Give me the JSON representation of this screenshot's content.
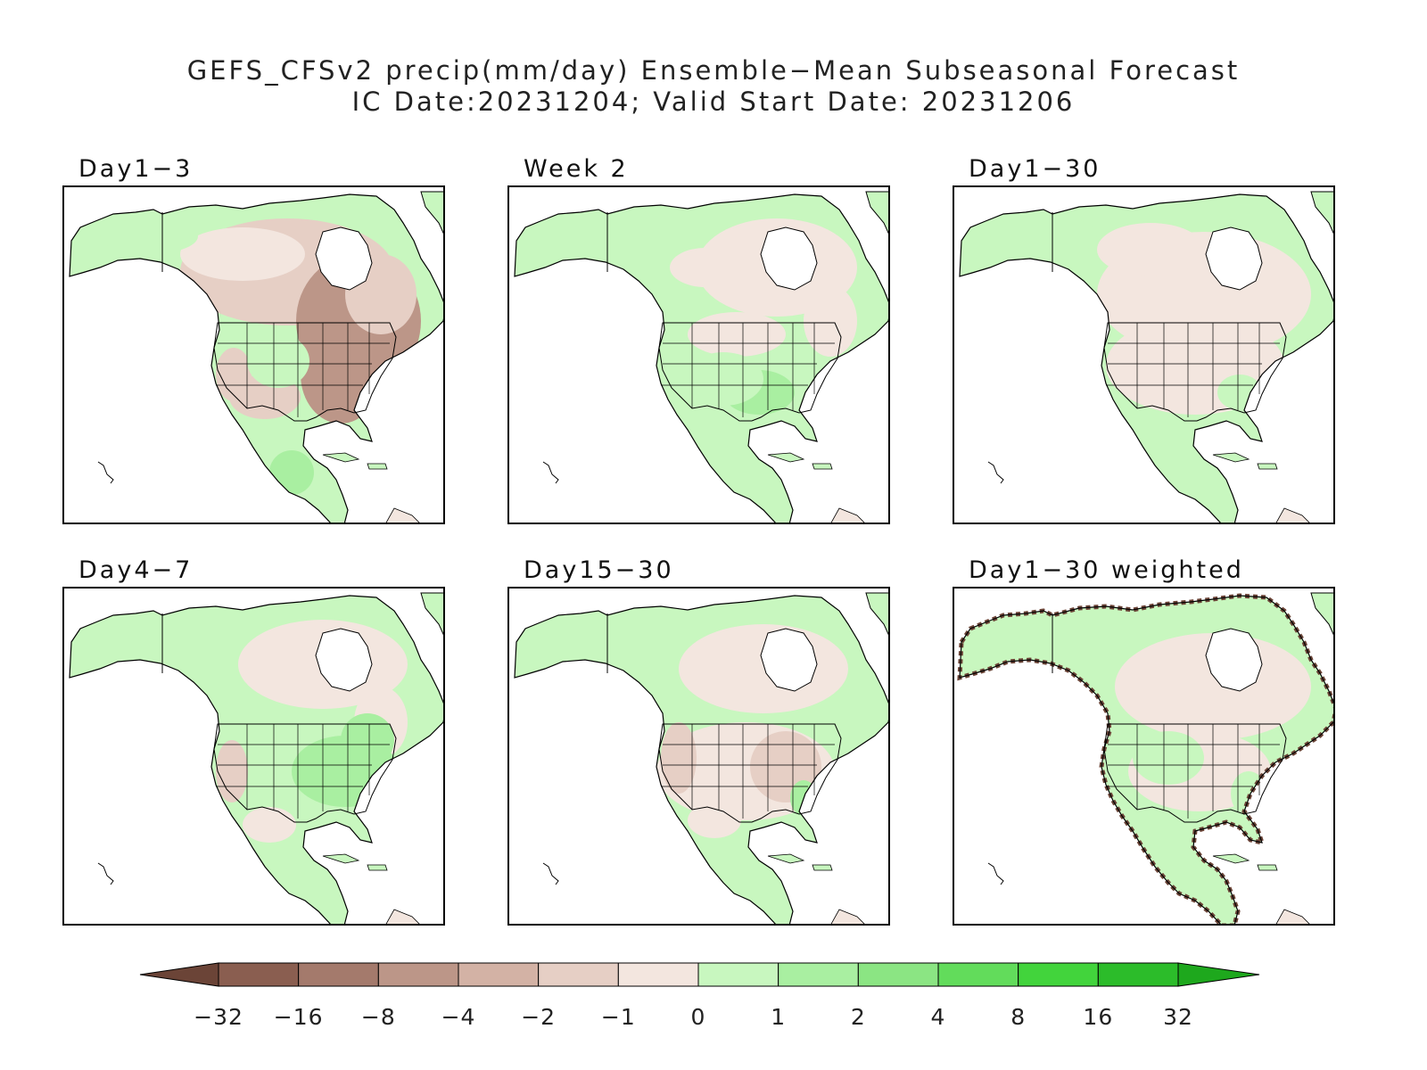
{
  "title": {
    "line1": "GEFS_CFSv2 precip(mm/day) Ensemble−Mean Subseasonal Forecast",
    "line2": "IC Date:20231204; Valid Start Date: 20231206"
  },
  "panels": [
    {
      "label": "Day1−3",
      "pattern": "dry_east"
    },
    {
      "label": "Week 2",
      "pattern": "wet_south"
    },
    {
      "label": "Day1−30",
      "pattern": "mostly_dry"
    },
    {
      "label": "Day4−7",
      "pattern": "wet_east"
    },
    {
      "label": "Day15−30",
      "pattern": "dry_us"
    },
    {
      "label": "Day1−30 weighted",
      "pattern": "weighted"
    }
  ],
  "colorbar": {
    "ticks": [
      "−32",
      "−16",
      "−8",
      "−4",
      "−2",
      "−1",
      "0",
      "1",
      "2",
      "4",
      "8",
      "16",
      "32"
    ],
    "colors": [
      "#6b4437",
      "#8a5e50",
      "#a47a6c",
      "#bc9688",
      "#d3b2a5",
      "#e6cfc5",
      "#f3e6df",
      "#c8f7bf",
      "#a9efa1",
      "#8be583",
      "#62dc5b",
      "#42d43c",
      "#2cbc2a",
      "#1ea81d"
    ]
  }
}
